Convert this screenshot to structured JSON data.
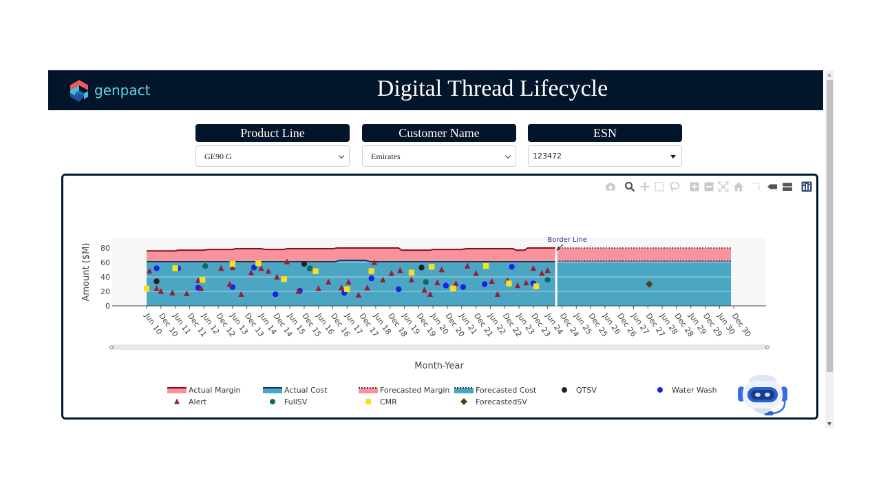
{
  "header": {
    "logo_text": "genpact",
    "title": "Digital Thread Lifecycle"
  },
  "filters": [
    {
      "label": "Product Line",
      "value": "GE90 G"
    },
    {
      "label": "Customer Name",
      "value": "Emirates"
    },
    {
      "label": "ESN",
      "value": "123472"
    }
  ],
  "modebar": {
    "icons": [
      "camera-icon",
      "zoom-icon",
      "pan-icon",
      "box-select-icon",
      "lasso-icon",
      "zoom-in-icon",
      "zoom-out-icon",
      "autoscale-icon",
      "home-icon",
      "spike-lines-icon",
      "hover-closest-icon",
      "hover-compare-icon",
      "plotly-logo-icon"
    ]
  },
  "chart_data": {
    "type": "area",
    "title": "",
    "xlabel": "Month-Year",
    "ylabel": "Amount ($M)",
    "ylim": [
      0,
      90
    ],
    "yticks": [
      0,
      20,
      40,
      60,
      80
    ],
    "categories": [
      "Jun 10",
      "Dec 10",
      "Jun 11",
      "Dec 11",
      "Jun 12",
      "Dec 12",
      "Jun 13",
      "Dec 13",
      "Jun 14",
      "Dec 14",
      "Jun 15",
      "Dec 15",
      "Jun 16",
      "Dec 16",
      "Jun 17",
      "Dec 17",
      "Jun 18",
      "Dec 18",
      "Jun 19",
      "Dec 19",
      "Jun 20",
      "Dec 20",
      "Jun 21",
      "Dec 21",
      "Jun 22",
      "Dec 22",
      "Jun 23",
      "Dec 23",
      "Jun 24",
      "Dec 24",
      "Jun 25",
      "Dec 25",
      "Jun 26",
      "Dec 26",
      "Jun 27",
      "Dec 27",
      "Jun 28",
      "Dec 28",
      "Jun 29",
      "Dec 29",
      "Jun 30",
      "Dec 30"
    ],
    "actual_x_range": [
      0,
      28.6
    ],
    "forecast_x_range": [
      28.6,
      40.8
    ],
    "series": [
      {
        "name": "Actual Margin",
        "kind": "line",
        "color": "#8b0f1a",
        "fill": "#f8929c",
        "points": [
          [
            0,
            76
          ],
          [
            2,
            76
          ],
          [
            2.2,
            77
          ],
          [
            4,
            77
          ],
          [
            4.3,
            78
          ],
          [
            6,
            78
          ],
          [
            6.2,
            79
          ],
          [
            8,
            79
          ],
          [
            8.3,
            78
          ],
          [
            9.6,
            78
          ],
          [
            9.8,
            79
          ],
          [
            13,
            79
          ],
          [
            13.3,
            80
          ],
          [
            17.6,
            80
          ],
          [
            17.8,
            77
          ],
          [
            19.8,
            77
          ],
          [
            20,
            78
          ],
          [
            22,
            78
          ],
          [
            22.3,
            79
          ],
          [
            25.6,
            79
          ],
          [
            25.8,
            77
          ],
          [
            26.4,
            77
          ],
          [
            26.6,
            80
          ],
          [
            28.6,
            80
          ]
        ]
      },
      {
        "name": "Actual Cost",
        "kind": "line",
        "color": "#0b3d59",
        "fill": "#4ba6c4",
        "points": [
          [
            0,
            61
          ],
          [
            13.2,
            61
          ],
          [
            13.5,
            63
          ],
          [
            15.3,
            63
          ],
          [
            15.6,
            61
          ],
          [
            28.6,
            61
          ]
        ]
      },
      {
        "name": "Forecasted Margin",
        "kind": "dotted-line",
        "color": "#333333",
        "fill": "#f8929c",
        "points": [
          [
            28.6,
            80
          ],
          [
            40.8,
            80
          ]
        ]
      },
      {
        "name": "Forecasted Cost",
        "kind": "dotted-line",
        "color": "#333333",
        "fill": "#4ba6c4",
        "points": [
          [
            28.6,
            62
          ],
          [
            40.8,
            62
          ]
        ]
      },
      {
        "name": "QTSV",
        "kind": "marker",
        "symbol": "circle",
        "color": "#222222",
        "points": [
          [
            0.7,
            34
          ],
          [
            11.0,
            58
          ],
          [
            19.2,
            53
          ]
        ]
      },
      {
        "name": "Water Wash",
        "kind": "marker",
        "symbol": "circle",
        "color": "#1a22e8",
        "points": [
          [
            0.7,
            52
          ],
          [
            2.2,
            52
          ],
          [
            3.6,
            25
          ],
          [
            6.0,
            26
          ],
          [
            7.5,
            53
          ],
          [
            9.0,
            16
          ],
          [
            10.7,
            21
          ],
          [
            13.8,
            18
          ],
          [
            15.7,
            38
          ],
          [
            17.6,
            23
          ],
          [
            20.9,
            28
          ],
          [
            22.1,
            26
          ],
          [
            23.6,
            30
          ],
          [
            25.5,
            54
          ],
          [
            27.0,
            31
          ]
        ]
      },
      {
        "name": "Alert",
        "kind": "marker",
        "symbol": "triangle-up",
        "color": "#9b1b3a",
        "points": [
          [
            0.2,
            48
          ],
          [
            0.7,
            24
          ],
          [
            1.0,
            20
          ],
          [
            1.8,
            18
          ],
          [
            2.8,
            17
          ],
          [
            3.6,
            35
          ],
          [
            3.8,
            24
          ],
          [
            5.2,
            52
          ],
          [
            6.0,
            53
          ],
          [
            5.8,
            30
          ],
          [
            6.6,
            16
          ],
          [
            7.3,
            46
          ],
          [
            8.0,
            52
          ],
          [
            8.5,
            48
          ],
          [
            9.1,
            40
          ],
          [
            9.8,
            61
          ],
          [
            10.6,
            20
          ],
          [
            11.4,
            52
          ],
          [
            12.0,
            24
          ],
          [
            12.7,
            33
          ],
          [
            13.6,
            25
          ],
          [
            14.1,
            33
          ],
          [
            14.8,
            15
          ],
          [
            15.4,
            25
          ],
          [
            15.9,
            60
          ],
          [
            16.5,
            36
          ],
          [
            17.1,
            45
          ],
          [
            17.7,
            49
          ],
          [
            18.5,
            36
          ],
          [
            19.4,
            22
          ],
          [
            19.8,
            16
          ],
          [
            20.3,
            32
          ],
          [
            20.6,
            50
          ],
          [
            21.6,
            31
          ],
          [
            22.4,
            55
          ],
          [
            23.0,
            45
          ],
          [
            24.1,
            34
          ],
          [
            24.5,
            16
          ],
          [
            25.2,
            35
          ],
          [
            25.9,
            28
          ],
          [
            26.5,
            32
          ],
          [
            27.0,
            52
          ],
          [
            28.0,
            49
          ],
          [
            27.6,
            45
          ]
        ]
      },
      {
        "name": "FullSV",
        "kind": "marker",
        "symbol": "circle",
        "color": "#0e6b60",
        "points": [
          [
            4.1,
            55
          ],
          [
            11.4,
            52
          ],
          [
            19.5,
            33
          ],
          [
            28.0,
            36
          ]
        ]
      },
      {
        "name": "CMR",
        "kind": "marker",
        "symbol": "square",
        "color": "#f8e11a",
        "points": [
          [
            0,
            24
          ],
          [
            2.0,
            52
          ],
          [
            3.9,
            36
          ],
          [
            6.0,
            58
          ],
          [
            7.8,
            59
          ],
          [
            9.6,
            37
          ],
          [
            11.8,
            48
          ],
          [
            14.0,
            23
          ],
          [
            15.7,
            48
          ],
          [
            18.5,
            46
          ],
          [
            19.9,
            54
          ],
          [
            21.4,
            24
          ],
          [
            23.7,
            55
          ],
          [
            25.3,
            31
          ],
          [
            27.2,
            27
          ]
        ]
      },
      {
        "name": "ForecastedSV",
        "kind": "marker",
        "symbol": "diamond",
        "color": "#5a3a17",
        "points": [
          [
            35.1,
            30
          ]
        ]
      }
    ],
    "border_line": {
      "label": "Border Line",
      "x": 28.6
    },
    "legend": {
      "placement": "bottom",
      "items": [
        {
          "name": "Actual Margin",
          "icon": "line-fill",
          "line": "#8b0f1a",
          "fill": "#f8929c"
        },
        {
          "name": "Actual Cost",
          "icon": "line-fill",
          "line": "#0b3d59",
          "fill": "#4ba6c4"
        },
        {
          "name": "Forecasted Margin",
          "icon": "dotted-fill",
          "line": "#8b0f1a",
          "fill": "#f8929c"
        },
        {
          "name": "Forecasted Cost",
          "icon": "dotted-fill",
          "line": "#0b3d59",
          "fill": "#4ba6c4"
        },
        {
          "name": "QTSV",
          "icon": "circle",
          "color": "#222222"
        },
        {
          "name": "Water Wash",
          "icon": "circle",
          "color": "#1a22e8"
        },
        {
          "name": "Alert",
          "icon": "triangle-up",
          "color": "#9b1b3a"
        },
        {
          "name": "FullSV",
          "icon": "circle",
          "color": "#0e6b60"
        },
        {
          "name": "CMR",
          "icon": "square",
          "color": "#f8e11a"
        },
        {
          "name": "ForecastedSV",
          "icon": "diamond",
          "color": "#5a3a17"
        }
      ]
    }
  }
}
